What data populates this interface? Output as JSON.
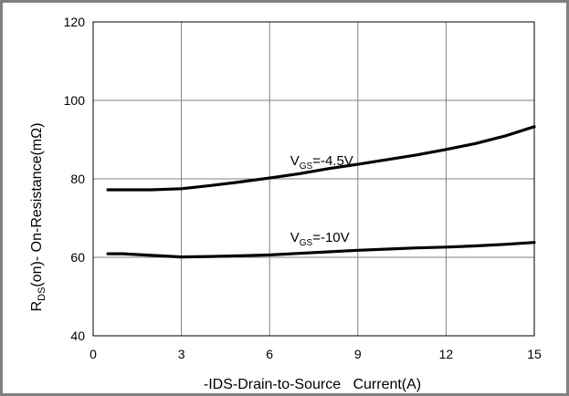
{
  "chart_data": {
    "type": "line",
    "xlabel": "-IDS-Drain-to-Source   Current(A)",
    "ylabel": {
      "main": "R",
      "sub": "DS",
      "rest": "(on)- On-Resistance(mΩ)"
    },
    "xlim": [
      0,
      15
    ],
    "ylim": [
      40,
      120
    ],
    "x_ticks": [
      "0",
      "3",
      "6",
      "9",
      "12",
      "15"
    ],
    "y_ticks": [
      "40",
      "60",
      "80",
      "100",
      "120"
    ],
    "grid": true,
    "series": [
      {
        "label": {
          "main": "V",
          "sub": "GS",
          "rest": "=-4.5V"
        },
        "label_at": [
          6.7,
          83.5
        ],
        "x": [
          0.5,
          1,
          2,
          3,
          4,
          5,
          6,
          7,
          8,
          9,
          10,
          11,
          12,
          13,
          14,
          15
        ],
        "y": [
          77.2,
          77.2,
          77.2,
          77.5,
          78.3,
          79.2,
          80.2,
          81.3,
          82.6,
          83.7,
          84.9,
          86.1,
          87.5,
          89.0,
          90.9,
          93.3
        ]
      },
      {
        "label": {
          "main": "V",
          "sub": "GS",
          "rest": "=-10V"
        },
        "label_at": [
          6.7,
          64.0
        ],
        "x": [
          0.5,
          1,
          2,
          3,
          4,
          5,
          6,
          7,
          8,
          9,
          10,
          11,
          12,
          13,
          14,
          15
        ],
        "y": [
          60.9,
          60.9,
          60.5,
          60.1,
          60.2,
          60.4,
          60.6,
          61.0,
          61.4,
          61.8,
          62.1,
          62.4,
          62.6,
          62.9,
          63.3,
          63.8
        ]
      }
    ]
  }
}
